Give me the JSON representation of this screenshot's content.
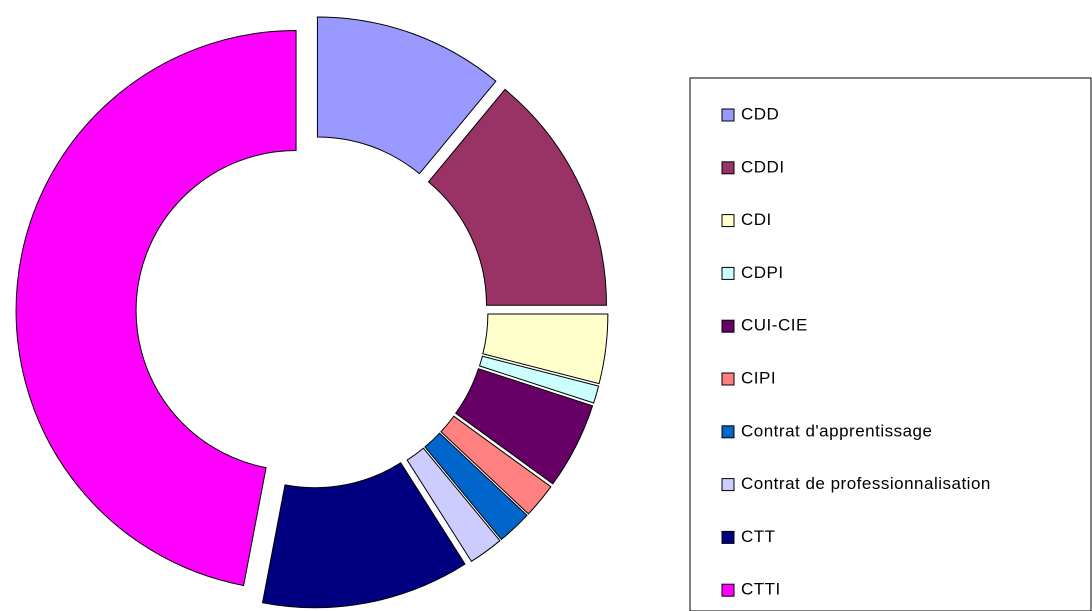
{
  "chart_data": {
    "type": "donut",
    "categories": [
      "CDD",
      "CDDI",
      "CDI",
      "CDPI",
      "CUI-CIE",
      "CIPI",
      "Contrat d'apprentissage",
      "Contrat de professionnalisation",
      "CTT",
      "CTTI"
    ],
    "values": [
      11,
      14,
      4,
      1,
      5,
      2,
      2,
      2,
      12,
      47
    ],
    "colors": [
      "#9999ff",
      "#993366",
      "#ffffcc",
      "#ccffff",
      "#660066",
      "#ff8080",
      "#0066cc",
      "#ccccff",
      "#000080",
      "#ff00ff"
    ],
    "legend": "right"
  }
}
